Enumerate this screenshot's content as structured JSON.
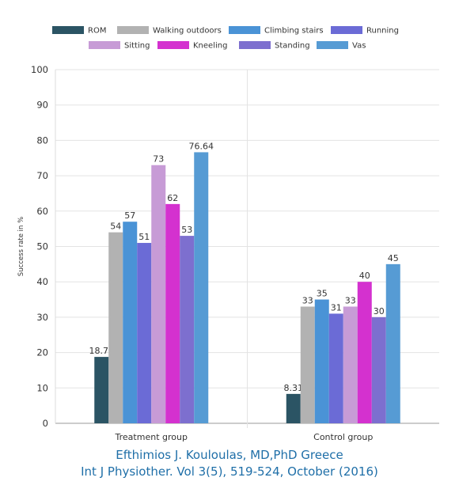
{
  "chart_data": {
    "type": "bar",
    "title": "",
    "xlabel": "",
    "ylabel": "Success rate in %",
    "ylim": [
      0,
      100
    ],
    "yticks": [
      "0",
      "10",
      "20",
      "30",
      "40",
      "50",
      "60",
      "70",
      "80",
      "90",
      "100"
    ],
    "grid": true,
    "legend_position": "top",
    "categories": [
      "Treatment group",
      "Control group"
    ],
    "series": [
      {
        "name": "ROM",
        "color": "#2b5464",
        "values": [
          18.77,
          8.31
        ],
        "labels": [
          "18.77",
          "8.31"
        ]
      },
      {
        "name": "Walking outdoors",
        "color": "#b2b2b2",
        "values": [
          54,
          33
        ],
        "labels": [
          "54",
          "33"
        ]
      },
      {
        "name": "Climbing stairs",
        "color": "#4a93d6",
        "values": [
          57,
          35
        ],
        "labels": [
          "57",
          "35"
        ]
      },
      {
        "name": "Running",
        "color": "#6b6bd6",
        "values": [
          51,
          31
        ],
        "labels": [
          "51",
          "31"
        ]
      },
      {
        "name": "Sitting",
        "color": "#c79bd6",
        "values": [
          73,
          33
        ],
        "labels": [
          "73",
          "33"
        ]
      },
      {
        "name": "Kneeling",
        "color": "#d431cf",
        "values": [
          62,
          40
        ],
        "labels": [
          "62",
          "40"
        ]
      },
      {
        "name": "Standing",
        "color": "#7d6fcf",
        "values": [
          53,
          30
        ],
        "labels": [
          "53",
          "30"
        ]
      },
      {
        "name": "Vas",
        "color": "#569bd4",
        "values": [
          76.64,
          45
        ],
        "labels": [
          "76.64",
          "45"
        ]
      }
    ]
  },
  "credit": {
    "line1": "Efthimios J. Kouloulas, MD,PhD Greece",
    "line2": "Int J Physiother. Vol 3(5), 519-524, October (2016)"
  }
}
